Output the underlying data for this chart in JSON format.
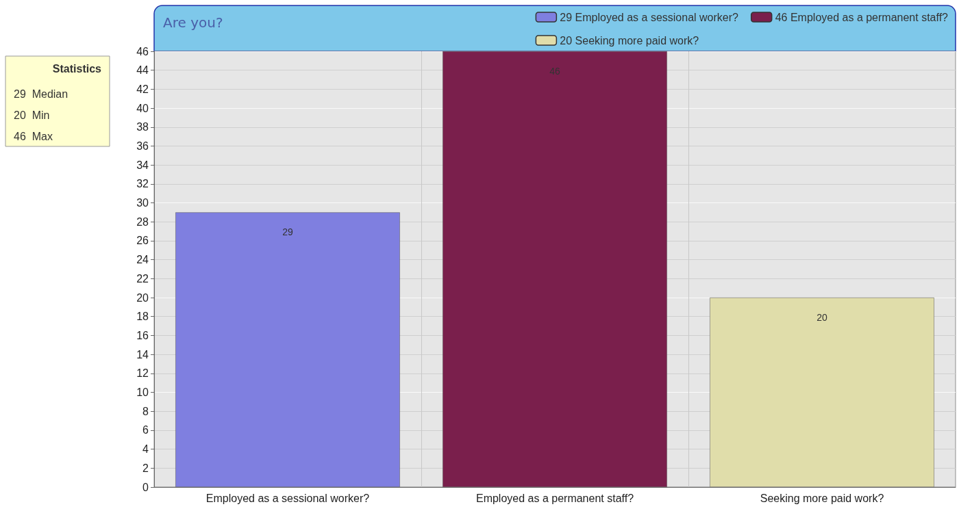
{
  "chart_data": {
    "type": "bar",
    "title": "Are you?",
    "categories": [
      "Employed as a sessional worker?",
      "Employed as a permanent staff?",
      "Seeking more paid work?"
    ],
    "series": [
      {
        "name": "29 Employed as a sessional worker?",
        "color": "#7f7fe0",
        "values": [
          29,
          null,
          null
        ]
      },
      {
        "name": "46 Employed as a permanent staff?",
        "color": "#7a1f4c",
        "values": [
          null,
          46,
          null
        ]
      },
      {
        "name": "20 Seeking more paid work?",
        "color": "#e0ddaa",
        "values": [
          null,
          null,
          20
        ]
      }
    ],
    "stacked": true,
    "ylim": [
      0,
      46
    ],
    "yticks": [
      0,
      2,
      4,
      6,
      8,
      10,
      12,
      14,
      16,
      18,
      20,
      22,
      24,
      26,
      28,
      30,
      32,
      34,
      36,
      38,
      40,
      42,
      44,
      46
    ],
    "grid": true,
    "data_labels": true,
    "legend": "top right",
    "annotations": [
      "Statistics",
      "29  Median",
      "20  Min",
      "46  Max"
    ]
  }
}
